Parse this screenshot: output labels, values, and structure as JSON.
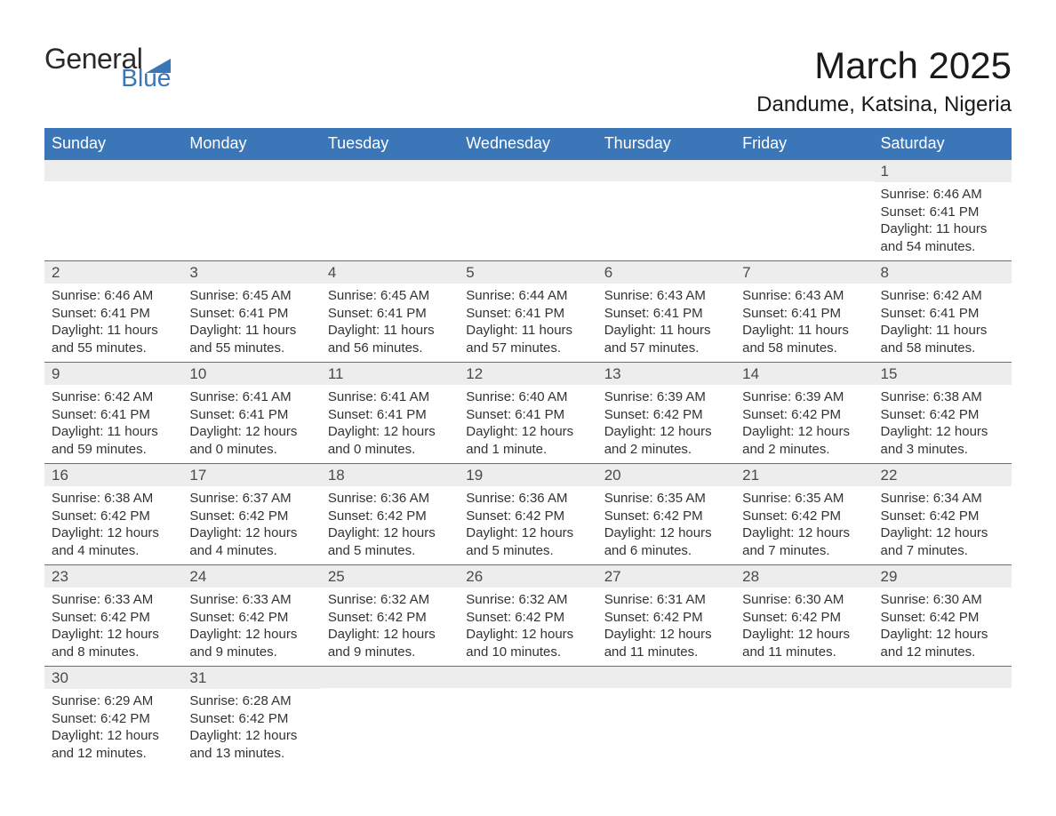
{
  "brand": {
    "text_general": "General",
    "text_blue": "Blue",
    "shape_color": "#3b76b8"
  },
  "title": "March 2025",
  "location": "Dandume, Katsina, Nigeria",
  "colors": {
    "header_bg": "#3b76b8",
    "header_text": "#ffffff",
    "daynum_bg": "#ededed",
    "body_text": "#333333",
    "rule": "#3b76b8",
    "page_bg": "#ffffff"
  },
  "typography": {
    "title_fontsize": 42,
    "location_fontsize": 24,
    "dayheader_fontsize": 18,
    "daynum_fontsize": 17,
    "body_fontsize": 15
  },
  "calendar": {
    "day_headers": [
      "Sunday",
      "Monday",
      "Tuesday",
      "Wednesday",
      "Thursday",
      "Friday",
      "Saturday"
    ],
    "weeks": [
      [
        null,
        null,
        null,
        null,
        null,
        null,
        {
          "n": "1",
          "sunrise": "Sunrise: 6:46 AM",
          "sunset": "Sunset: 6:41 PM",
          "daylight": "Daylight: 11 hours and 54 minutes."
        }
      ],
      [
        {
          "n": "2",
          "sunrise": "Sunrise: 6:46 AM",
          "sunset": "Sunset: 6:41 PM",
          "daylight": "Daylight: 11 hours and 55 minutes."
        },
        {
          "n": "3",
          "sunrise": "Sunrise: 6:45 AM",
          "sunset": "Sunset: 6:41 PM",
          "daylight": "Daylight: 11 hours and 55 minutes."
        },
        {
          "n": "4",
          "sunrise": "Sunrise: 6:45 AM",
          "sunset": "Sunset: 6:41 PM",
          "daylight": "Daylight: 11 hours and 56 minutes."
        },
        {
          "n": "5",
          "sunrise": "Sunrise: 6:44 AM",
          "sunset": "Sunset: 6:41 PM",
          "daylight": "Daylight: 11 hours and 57 minutes."
        },
        {
          "n": "6",
          "sunrise": "Sunrise: 6:43 AM",
          "sunset": "Sunset: 6:41 PM",
          "daylight": "Daylight: 11 hours and 57 minutes."
        },
        {
          "n": "7",
          "sunrise": "Sunrise: 6:43 AM",
          "sunset": "Sunset: 6:41 PM",
          "daylight": "Daylight: 11 hours and 58 minutes."
        },
        {
          "n": "8",
          "sunrise": "Sunrise: 6:42 AM",
          "sunset": "Sunset: 6:41 PM",
          "daylight": "Daylight: 11 hours and 58 minutes."
        }
      ],
      [
        {
          "n": "9",
          "sunrise": "Sunrise: 6:42 AM",
          "sunset": "Sunset: 6:41 PM",
          "daylight": "Daylight: 11 hours and 59 minutes."
        },
        {
          "n": "10",
          "sunrise": "Sunrise: 6:41 AM",
          "sunset": "Sunset: 6:41 PM",
          "daylight": "Daylight: 12 hours and 0 minutes."
        },
        {
          "n": "11",
          "sunrise": "Sunrise: 6:41 AM",
          "sunset": "Sunset: 6:41 PM",
          "daylight": "Daylight: 12 hours and 0 minutes."
        },
        {
          "n": "12",
          "sunrise": "Sunrise: 6:40 AM",
          "sunset": "Sunset: 6:41 PM",
          "daylight": "Daylight: 12 hours and 1 minute."
        },
        {
          "n": "13",
          "sunrise": "Sunrise: 6:39 AM",
          "sunset": "Sunset: 6:42 PM",
          "daylight": "Daylight: 12 hours and 2 minutes."
        },
        {
          "n": "14",
          "sunrise": "Sunrise: 6:39 AM",
          "sunset": "Sunset: 6:42 PM",
          "daylight": "Daylight: 12 hours and 2 minutes."
        },
        {
          "n": "15",
          "sunrise": "Sunrise: 6:38 AM",
          "sunset": "Sunset: 6:42 PM",
          "daylight": "Daylight: 12 hours and 3 minutes."
        }
      ],
      [
        {
          "n": "16",
          "sunrise": "Sunrise: 6:38 AM",
          "sunset": "Sunset: 6:42 PM",
          "daylight": "Daylight: 12 hours and 4 minutes."
        },
        {
          "n": "17",
          "sunrise": "Sunrise: 6:37 AM",
          "sunset": "Sunset: 6:42 PM",
          "daylight": "Daylight: 12 hours and 4 minutes."
        },
        {
          "n": "18",
          "sunrise": "Sunrise: 6:36 AM",
          "sunset": "Sunset: 6:42 PM",
          "daylight": "Daylight: 12 hours and 5 minutes."
        },
        {
          "n": "19",
          "sunrise": "Sunrise: 6:36 AM",
          "sunset": "Sunset: 6:42 PM",
          "daylight": "Daylight: 12 hours and 5 minutes."
        },
        {
          "n": "20",
          "sunrise": "Sunrise: 6:35 AM",
          "sunset": "Sunset: 6:42 PM",
          "daylight": "Daylight: 12 hours and 6 minutes."
        },
        {
          "n": "21",
          "sunrise": "Sunrise: 6:35 AM",
          "sunset": "Sunset: 6:42 PM",
          "daylight": "Daylight: 12 hours and 7 minutes."
        },
        {
          "n": "22",
          "sunrise": "Sunrise: 6:34 AM",
          "sunset": "Sunset: 6:42 PM",
          "daylight": "Daylight: 12 hours and 7 minutes."
        }
      ],
      [
        {
          "n": "23",
          "sunrise": "Sunrise: 6:33 AM",
          "sunset": "Sunset: 6:42 PM",
          "daylight": "Daylight: 12 hours and 8 minutes."
        },
        {
          "n": "24",
          "sunrise": "Sunrise: 6:33 AM",
          "sunset": "Sunset: 6:42 PM",
          "daylight": "Daylight: 12 hours and 9 minutes."
        },
        {
          "n": "25",
          "sunrise": "Sunrise: 6:32 AM",
          "sunset": "Sunset: 6:42 PM",
          "daylight": "Daylight: 12 hours and 9 minutes."
        },
        {
          "n": "26",
          "sunrise": "Sunrise: 6:32 AM",
          "sunset": "Sunset: 6:42 PM",
          "daylight": "Daylight: 12 hours and 10 minutes."
        },
        {
          "n": "27",
          "sunrise": "Sunrise: 6:31 AM",
          "sunset": "Sunset: 6:42 PM",
          "daylight": "Daylight: 12 hours and 11 minutes."
        },
        {
          "n": "28",
          "sunrise": "Sunrise: 6:30 AM",
          "sunset": "Sunset: 6:42 PM",
          "daylight": "Daylight: 12 hours and 11 minutes."
        },
        {
          "n": "29",
          "sunrise": "Sunrise: 6:30 AM",
          "sunset": "Sunset: 6:42 PM",
          "daylight": "Daylight: 12 hours and 12 minutes."
        }
      ],
      [
        {
          "n": "30",
          "sunrise": "Sunrise: 6:29 AM",
          "sunset": "Sunset: 6:42 PM",
          "daylight": "Daylight: 12 hours and 12 minutes."
        },
        {
          "n": "31",
          "sunrise": "Sunrise: 6:28 AM",
          "sunset": "Sunset: 6:42 PM",
          "daylight": "Daylight: 12 hours and 13 minutes."
        },
        null,
        null,
        null,
        null,
        null
      ]
    ]
  }
}
